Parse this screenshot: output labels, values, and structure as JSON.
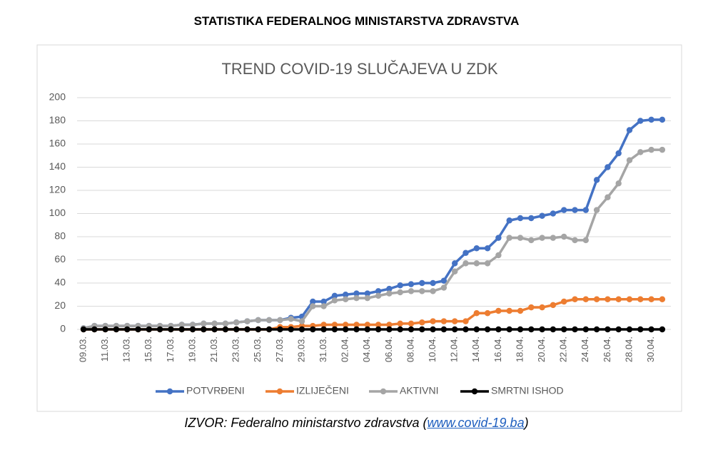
{
  "header": {
    "title": "STATISTIKA FEDERALNOG MINISTARSTVA ZDRAVSTVA"
  },
  "chart_data": {
    "type": "line",
    "title": "TREND COVID-19 SLUČAJEVA U ZDK",
    "categories": [
      "09.03.",
      null,
      "11.03.",
      null,
      "13.03.",
      null,
      "15.03.",
      null,
      "17.03.",
      null,
      "19.03.",
      null,
      "21.03.",
      null,
      "23.03.",
      null,
      "25.03.",
      null,
      "27.03.",
      null,
      "29.03.",
      null,
      "31.03.",
      null,
      "02.04.",
      null,
      "04.04.",
      null,
      "06.04.",
      null,
      "08.04.",
      null,
      "10.04.",
      null,
      "12.04.",
      null,
      "14.04.",
      null,
      "16.04.",
      null,
      "18.04.",
      null,
      "20.04.",
      null,
      "22.04.",
      null,
      "24.04.",
      null,
      "26.04.",
      null,
      "28.04.",
      null,
      "30.04.",
      null
    ],
    "series": [
      {
        "name": "POTVRĐENI",
        "color": "#4472c4",
        "values": [
          1,
          3,
          3,
          3,
          3,
          3,
          3,
          3,
          3,
          4,
          4,
          5,
          5,
          5,
          6,
          7,
          8,
          8,
          8,
          10,
          11,
          24,
          24,
          29,
          30,
          31,
          31,
          33,
          35,
          38,
          39,
          40,
          40,
          42,
          57,
          66,
          70,
          70,
          79,
          94,
          96,
          96,
          98,
          100,
          103,
          103,
          103,
          129,
          140,
          152,
          172,
          180,
          181,
          181
        ]
      },
      {
        "name": "IZLIJEČENI",
        "color": "#ed7d31",
        "values": [
          0,
          0,
          0,
          0,
          0,
          0,
          0,
          0,
          0,
          0,
          0,
          0,
          0,
          0,
          0,
          0,
          0,
          0,
          2,
          2,
          3,
          3,
          4,
          4,
          4,
          4,
          4,
          4,
          4,
          5,
          5,
          6,
          7,
          7,
          7,
          7,
          14,
          14,
          16,
          16,
          16,
          19,
          19,
          21,
          24,
          26,
          26,
          26,
          26,
          26,
          26,
          26,
          26,
          26
        ]
      },
      {
        "name": "AKTIVNI",
        "color": "#a5a5a5",
        "values": [
          1,
          3,
          3,
          3,
          3,
          3,
          3,
          3,
          3,
          4,
          4,
          5,
          5,
          5,
          6,
          7,
          8,
          8,
          8,
          9,
          7,
          20,
          20,
          25,
          26,
          27,
          27,
          29,
          31,
          32,
          33,
          33,
          33,
          36,
          50,
          57,
          57,
          57,
          64,
          79,
          79,
          77,
          79,
          79,
          80,
          77,
          77,
          103,
          114,
          126,
          146,
          153,
          155,
          155
        ]
      },
      {
        "name": "SMRTNI ISHOD",
        "color": "#000000",
        "values": [
          0,
          0,
          0,
          0,
          0,
          0,
          0,
          0,
          0,
          0,
          0,
          0,
          0,
          0,
          0,
          0,
          0,
          0,
          0,
          0,
          0,
          0,
          0,
          0,
          0,
          0,
          0,
          0,
          0,
          0,
          0,
          0,
          0,
          0,
          0,
          0,
          0,
          0,
          0,
          0,
          0,
          0,
          0,
          0,
          0,
          0,
          0,
          0,
          0,
          0,
          0,
          0,
          0,
          0
        ]
      }
    ],
    "ylim": [
      0,
      200
    ],
    "yticks": [
      0,
      20,
      40,
      60,
      80,
      100,
      120,
      140,
      160,
      180,
      200
    ],
    "grid": true,
    "legend": "bottom"
  },
  "source": {
    "prefix": "IZVOR: Federalno ministarstvo zdravstva (",
    "link": "www.covid-19.ba",
    "suffix": ")"
  }
}
